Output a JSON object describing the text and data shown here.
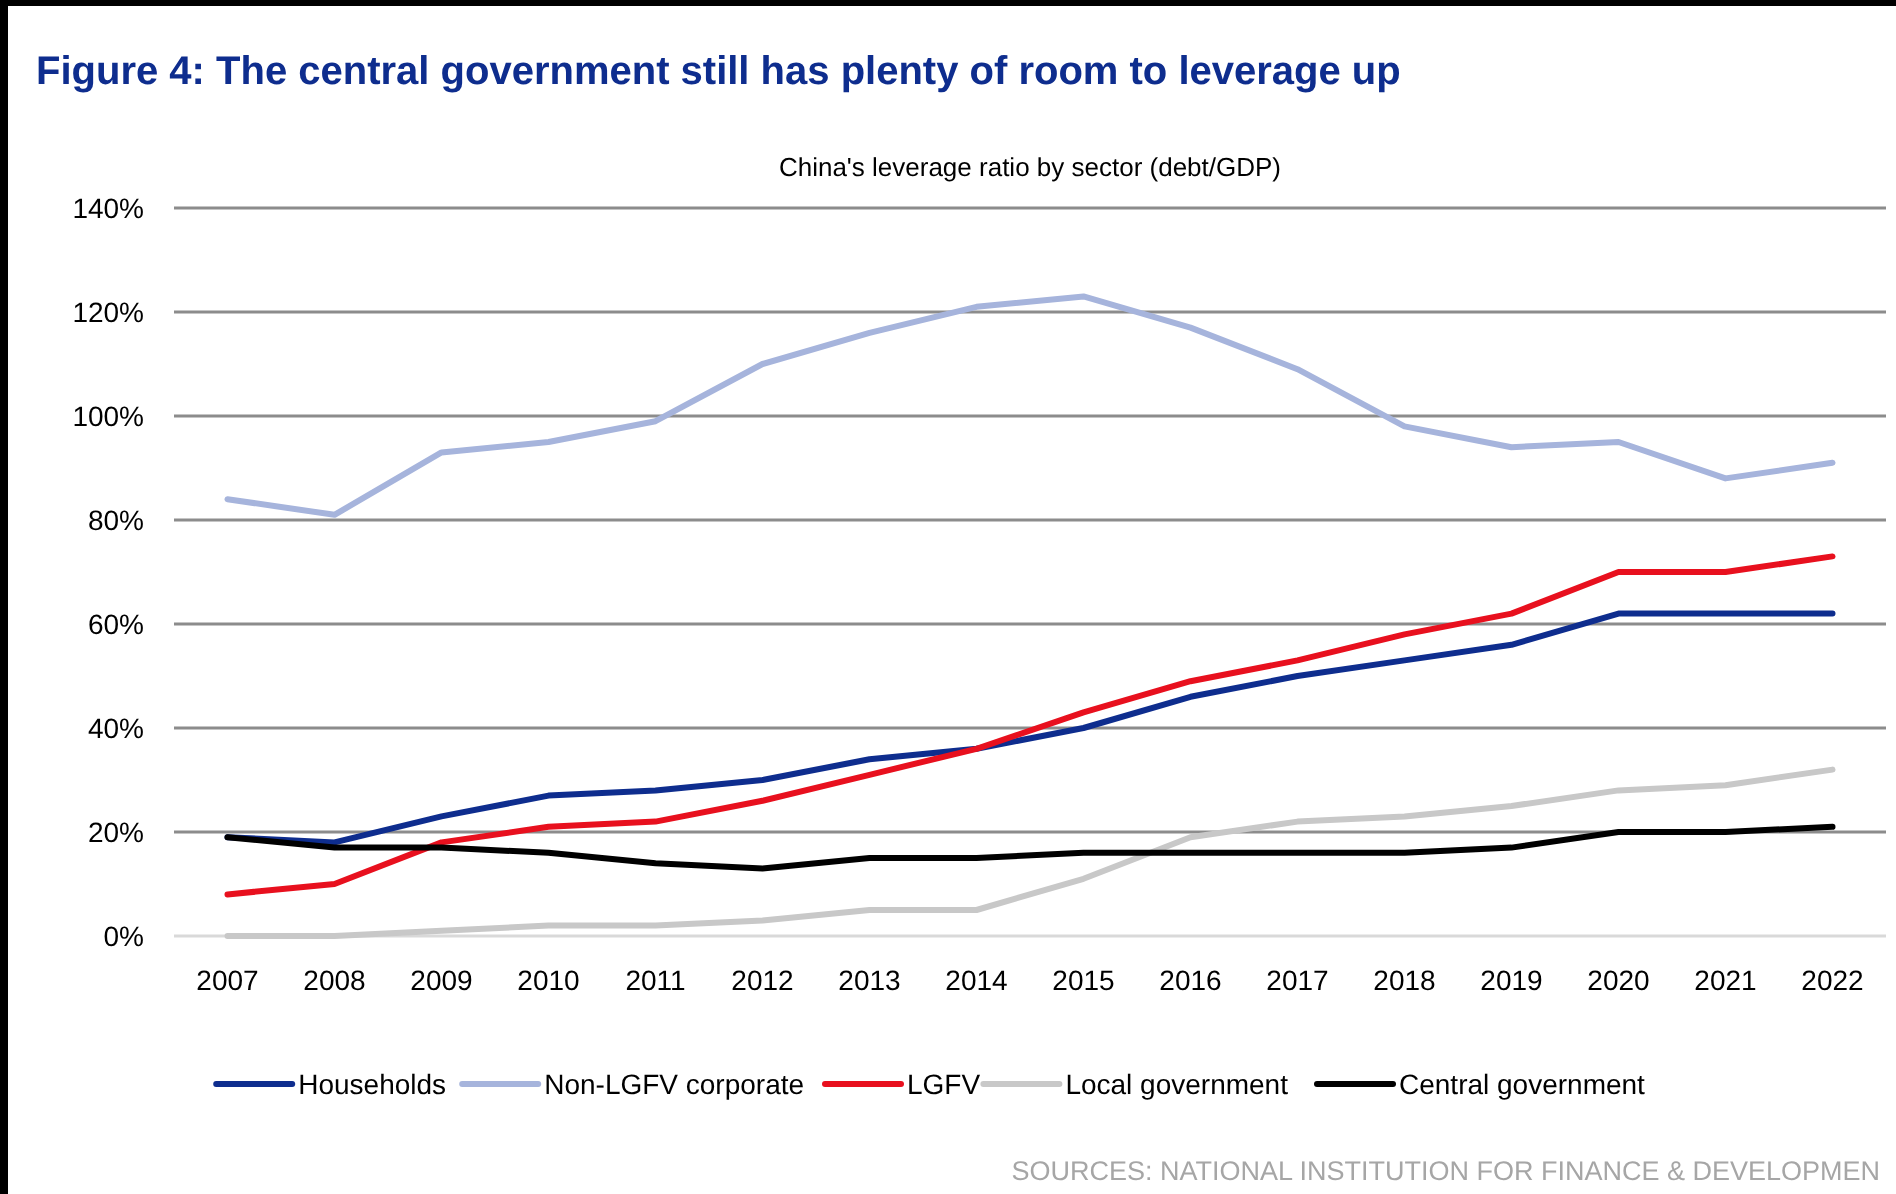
{
  "chart_data": {
    "type": "line",
    "title": "Figure 4: The central government still has plenty of room to leverage up",
    "subtitle": "China's leverage ratio by sector (debt/GDP)",
    "categories": [
      "2007",
      "2008",
      "2009",
      "2010",
      "2011",
      "2012",
      "2013",
      "2014",
      "2015",
      "2016",
      "2017",
      "2018",
      "2019",
      "2020",
      "2021",
      "2022"
    ],
    "series": [
      {
        "name": "Households",
        "color": "#0e2d8e",
        "values": [
          19,
          18,
          23,
          27,
          28,
          30,
          34,
          36,
          40,
          46,
          50,
          53,
          56,
          62,
          62,
          62
        ]
      },
      {
        "name": "Non-LGFV corporate",
        "color": "#a6b4dc",
        "values": [
          84,
          81,
          93,
          95,
          99,
          110,
          116,
          121,
          123,
          117,
          109,
          98,
          94,
          95,
          88,
          91
        ]
      },
      {
        "name": "LGFV",
        "color": "#e8101e",
        "values": [
          8,
          10,
          18,
          21,
          22,
          26,
          31,
          36,
          43,
          49,
          53,
          58,
          62,
          70,
          70,
          73
        ]
      },
      {
        "name": "Local government",
        "color": "#c8c8c8",
        "values": [
          0,
          0,
          1,
          2,
          2,
          3,
          5,
          5,
          11,
          19,
          22,
          23,
          25,
          28,
          29,
          32
        ]
      },
      {
        "name": "Central government",
        "color": "#000000",
        "values": [
          19,
          17,
          17,
          16,
          14,
          13,
          15,
          15,
          16,
          16,
          16,
          16,
          17,
          20,
          20,
          21
        ]
      }
    ],
    "ylim": [
      0,
      140
    ],
    "yticks": [
      {
        "value": 0,
        "label": "0%"
      },
      {
        "value": 20,
        "label": "20%"
      },
      {
        "value": 40,
        "label": "40%"
      },
      {
        "value": 60,
        "label": "60%"
      },
      {
        "value": 80,
        "label": "80%"
      },
      {
        "value": 100,
        "label": "100%"
      },
      {
        "value": 120,
        "label": "120%"
      },
      {
        "value": 140,
        "label": "140%"
      }
    ],
    "grid": "y",
    "legend": "bottom",
    "marker": "none",
    "line_style": "solid",
    "annotations": [
      "SOURCES: NATIONAL INSTITUTION FOR FINANCE & DEVELOPMEN"
    ]
  }
}
